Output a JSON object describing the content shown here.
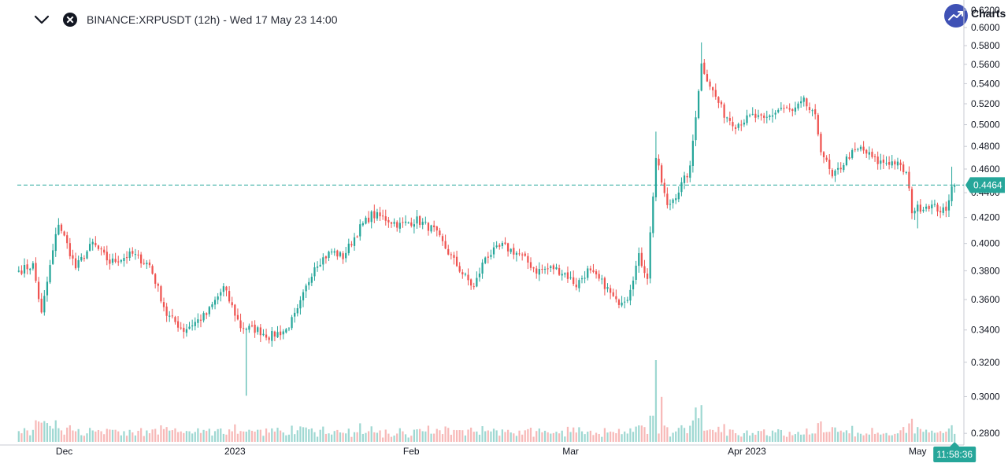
{
  "header": {
    "collapse_icon": "chevron-down-icon",
    "close_icon": "close-circle-icon",
    "title": "BINANCE:XRPUSDT (12h) - Wed 17 May 23 14:00",
    "logo_text": "Charts"
  },
  "colors": {
    "up": "#26a69a",
    "down": "#ef5350",
    "up_volume": "#9fd8d2",
    "down_volume": "#f7b9b8",
    "price_line": "#26a69a",
    "axis_line": "#c8cbd3",
    "logo": "#3f51b5"
  },
  "chart_data": {
    "type": "candlestick",
    "symbol": "BINANCE:XRPUSDT",
    "interval": "12h",
    "last_price": "0.4464",
    "countdown": "11:58:36",
    "ylim": [
      0.2772,
      0.6208
    ],
    "y_scale": "log",
    "y_ticks": [
      "0.6200",
      "0.6000",
      "0.5800",
      "0.5600",
      "0.5400",
      "0.5200",
      "0.5000",
      "0.4800",
      "0.4600",
      "0.4400",
      "0.4200",
      "0.4000",
      "0.3800",
      "0.3600",
      "0.3400",
      "0.3200",
      "0.3000",
      "0.2800"
    ],
    "x_ticks": [
      {
        "label": "Dec",
        "index": 16
      },
      {
        "label": "2023",
        "index": 76
      },
      {
        "label": "Feb",
        "index": 138
      },
      {
        "label": "Mar",
        "index": 194
      },
      {
        "label": "Apr 2023",
        "index": 256
      },
      {
        "label": "May",
        "index": 316
      }
    ],
    "waypoints": [
      [
        0,
        0.38
      ],
      [
        5,
        0.384
      ],
      [
        8,
        0.35
      ],
      [
        14,
        0.416
      ],
      [
        20,
        0.382
      ],
      [
        26,
        0.4
      ],
      [
        32,
        0.386
      ],
      [
        40,
        0.392
      ],
      [
        46,
        0.384
      ],
      [
        52,
        0.35
      ],
      [
        58,
        0.34
      ],
      [
        66,
        0.35
      ],
      [
        72,
        0.368
      ],
      [
        78,
        0.342
      ],
      [
        84,
        0.34
      ],
      [
        88,
        0.336
      ],
      [
        94,
        0.34
      ],
      [
        98,
        0.352
      ],
      [
        104,
        0.384
      ],
      [
        110,
        0.394
      ],
      [
        114,
        0.39
      ],
      [
        120,
        0.412
      ],
      [
        124,
        0.422
      ],
      [
        128,
        0.42
      ],
      [
        134,
        0.414
      ],
      [
        140,
        0.418
      ],
      [
        146,
        0.41
      ],
      [
        152,
        0.39
      ],
      [
        156,
        0.378
      ],
      [
        160,
        0.368
      ],
      [
        164,
        0.39
      ],
      [
        170,
        0.398
      ],
      [
        176,
        0.392
      ],
      [
        182,
        0.38
      ],
      [
        188,
        0.382
      ],
      [
        192,
        0.378
      ],
      [
        196,
        0.37
      ],
      [
        200,
        0.38
      ],
      [
        206,
        0.37
      ],
      [
        210,
        0.358
      ],
      [
        214,
        0.362
      ],
      [
        218,
        0.39
      ],
      [
        221,
        0.376
      ],
      [
        224,
        0.47
      ],
      [
        228,
        0.428
      ],
      [
        232,
        0.442
      ],
      [
        236,
        0.46
      ],
      [
        240,
        0.56
      ],
      [
        244,
        0.532
      ],
      [
        248,
        0.51
      ],
      [
        252,
        0.5
      ],
      [
        258,
        0.508
      ],
      [
        262,
        0.504
      ],
      [
        268,
        0.516
      ],
      [
        272,
        0.512
      ],
      [
        276,
        0.522
      ],
      [
        280,
        0.506
      ],
      [
        282,
        0.478
      ],
      [
        286,
        0.452
      ],
      [
        292,
        0.472
      ],
      [
        296,
        0.478
      ],
      [
        302,
        0.466
      ],
      [
        308,
        0.466
      ],
      [
        312,
        0.456
      ],
      [
        314,
        0.426
      ],
      [
        320,
        0.43
      ],
      [
        326,
        0.424
      ],
      [
        328,
        0.448
      ],
      [
        329,
        0.4464
      ]
    ],
    "seed": 7,
    "spikes": [
      {
        "index": 80,
        "low": 0.3005
      },
      {
        "index": 14,
        "high": 0.4195
      },
      {
        "index": 240,
        "high": 0.5835
      },
      {
        "index": 224,
        "high": 0.4935
      },
      {
        "index": 316,
        "low": 0.4115
      },
      {
        "index": 328,
        "high": 0.462
      }
    ],
    "volume_spikes": [
      {
        "index": 224,
        "value": 1.0
      },
      {
        "index": 226,
        "value": 0.55
      },
      {
        "index": 238,
        "value": 0.42
      },
      {
        "index": 240,
        "value": 0.45
      }
    ]
  }
}
